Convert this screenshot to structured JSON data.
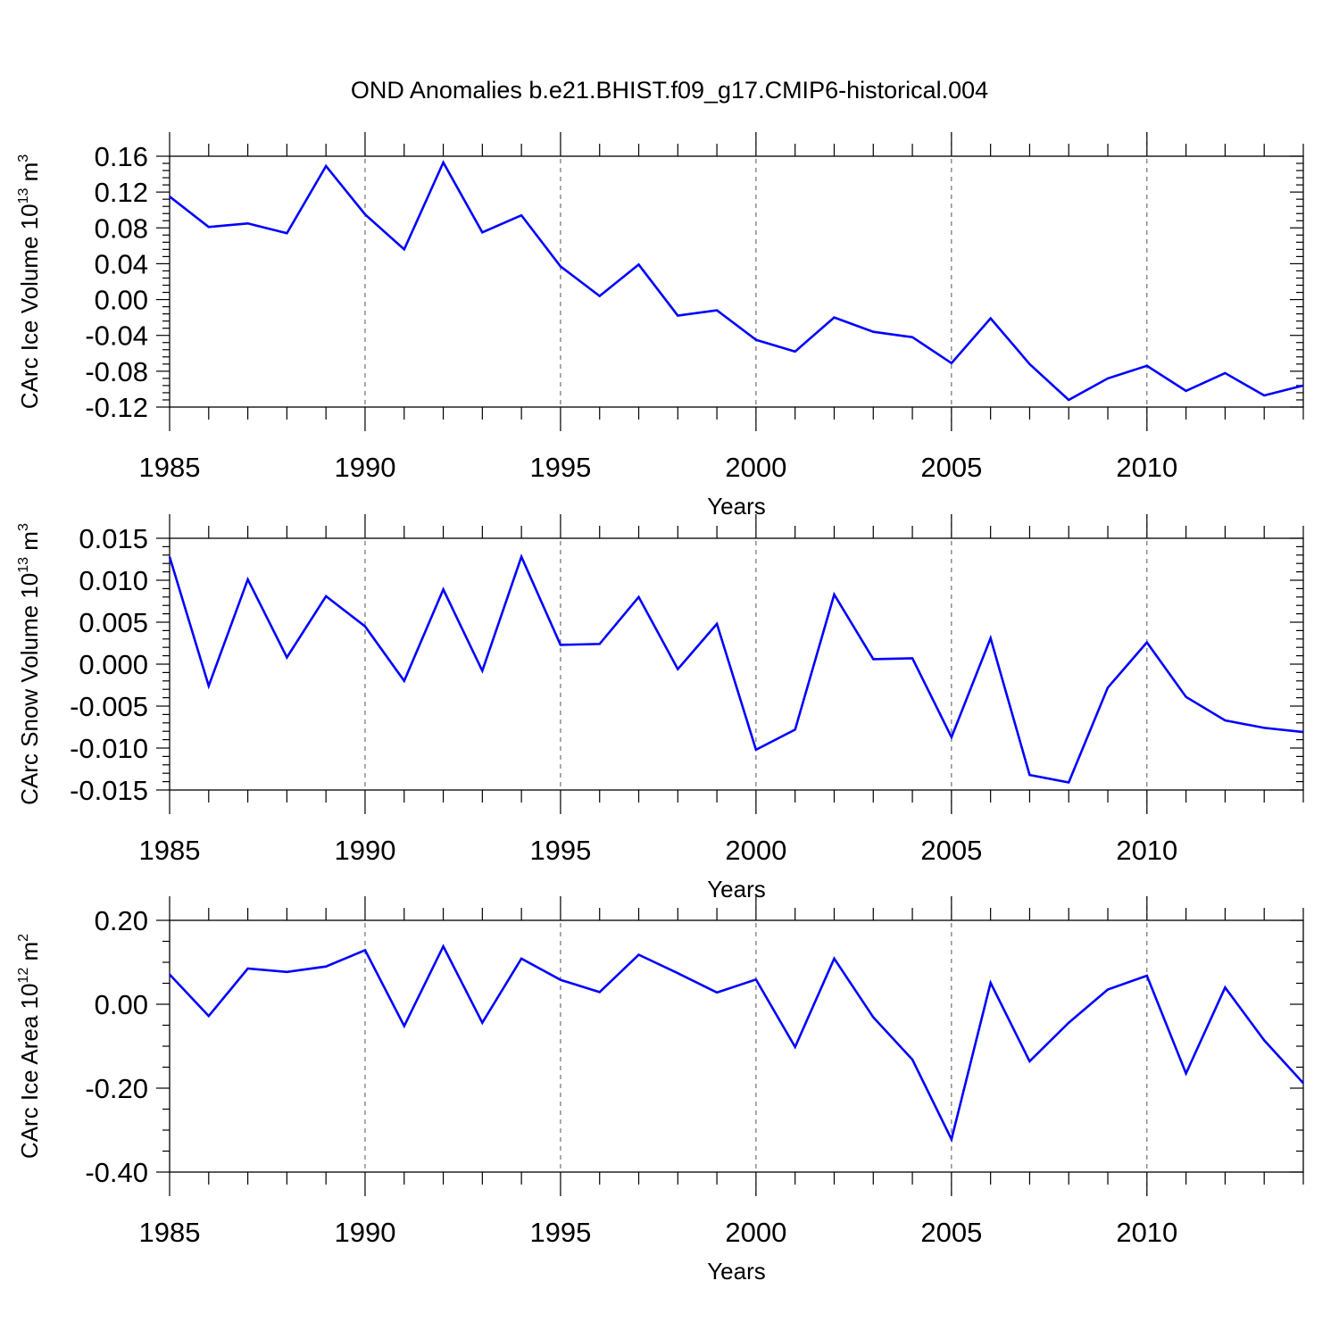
{
  "title": "OND Anomalies b.e21.BHIST.f09_g17.CMIP6-historical.004",
  "colors": {
    "line": "#0000ff",
    "axis": "#000000",
    "grid": "#555555"
  },
  "chart_data": [
    {
      "type": "line",
      "ylabel": {
        "text": "CArc Ice Volume 10",
        "sup": "13",
        "unit": " m",
        "unit_sup": "3"
      },
      "xlabel": "Years",
      "xlim": [
        1985,
        2014
      ],
      "ylim": [
        -0.12,
        0.16
      ],
      "yticks": [
        0.16,
        0.12,
        0.08,
        0.04,
        0.0,
        -0.04,
        -0.08,
        -0.12
      ],
      "ytick_labels": [
        "0.16",
        "0.12",
        "0.08",
        "0.04",
        "0.00",
        "-0.04",
        "-0.08",
        "-0.12"
      ],
      "xticks": [
        1985,
        1990,
        1995,
        2000,
        2005,
        2010
      ],
      "xtick_labels": [
        "1985",
        "1990",
        "1995",
        "2000",
        "2005",
        "2010"
      ],
      "x": [
        1985,
        1986,
        1987,
        1988,
        1989,
        1990,
        1991,
        1992,
        1993,
        1994,
        1995,
        1996,
        1997,
        1998,
        1999,
        2000,
        2001,
        2002,
        2003,
        2004,
        2005,
        2006,
        2007,
        2008,
        2009,
        2010,
        2011,
        2012,
        2013,
        2014
      ],
      "values": [
        0.115,
        0.081,
        0.085,
        0.074,
        0.149,
        0.095,
        0.056,
        0.153,
        0.075,
        0.094,
        0.037,
        0.004,
        0.039,
        -0.018,
        -0.012,
        -0.045,
        -0.058,
        -0.02,
        -0.036,
        -0.042,
        -0.071,
        -0.021,
        -0.072,
        -0.112,
        -0.088,
        -0.074,
        -0.102,
        -0.082,
        -0.107,
        -0.096
      ]
    },
    {
      "type": "line",
      "ylabel": {
        "text": "CArc Snow Volume 10",
        "sup": "13",
        "unit": " m",
        "unit_sup": "3"
      },
      "xlabel": "Years",
      "xlim": [
        1985,
        2014
      ],
      "ylim": [
        -0.015,
        0.015
      ],
      "yticks": [
        0.015,
        0.01,
        0.005,
        0.0,
        -0.005,
        -0.01,
        -0.015
      ],
      "ytick_labels": [
        "0.015",
        "0.010",
        "0.005",
        "0.000",
        "-0.005",
        "-0.010",
        "-0.015"
      ],
      "xticks": [
        1985,
        1990,
        1995,
        2000,
        2005,
        2010
      ],
      "xtick_labels": [
        "1985",
        "1990",
        "1995",
        "2000",
        "2005",
        "2010"
      ],
      "x": [
        1985,
        1986,
        1987,
        1988,
        1989,
        1990,
        1991,
        1992,
        1993,
        1994,
        1995,
        1996,
        1997,
        1998,
        1999,
        2000,
        2001,
        2002,
        2003,
        2004,
        2005,
        2006,
        2007,
        2008,
        2009,
        2010,
        2011,
        2012,
        2013,
        2014
      ],
      "values": [
        0.0128,
        -0.0026,
        0.0101,
        0.0008,
        0.0081,
        0.0045,
        -0.002,
        0.0089,
        -0.0008,
        0.0128,
        0.0023,
        0.0024,
        0.008,
        -0.0006,
        0.0048,
        -0.0102,
        -0.0078,
        0.0083,
        0.0006,
        0.0007,
        -0.0087,
        0.0031,
        -0.0132,
        -0.0141,
        -0.0028,
        0.0026,
        -0.0039,
        -0.0067,
        -0.0076,
        -0.0081
      ]
    },
    {
      "type": "line",
      "ylabel": {
        "text": "CArc Ice Area 10",
        "sup": "12",
        "unit": " m",
        "unit_sup": "2"
      },
      "xlabel": "Years",
      "xlim": [
        1985,
        2014
      ],
      "ylim": [
        -0.4,
        0.2
      ],
      "yticks": [
        0.2,
        0.0,
        -0.2,
        -0.4
      ],
      "ytick_labels": [
        "0.20",
        "0.00",
        "-0.20",
        "-0.40"
      ],
      "xticks": [
        1985,
        1990,
        1995,
        2000,
        2005,
        2010
      ],
      "xtick_labels": [
        "1985",
        "1990",
        "1995",
        "2000",
        "2005",
        "2010"
      ],
      "x": [
        1985,
        1986,
        1987,
        1988,
        1989,
        1990,
        1991,
        1992,
        1993,
        1994,
        1995,
        1996,
        1997,
        1998,
        1999,
        2000,
        2001,
        2002,
        2003,
        2004,
        2005,
        2006,
        2007,
        2008,
        2009,
        2010,
        2011,
        2012,
        2013,
        2014
      ],
      "values": [
        0.071,
        -0.028,
        0.085,
        0.077,
        0.09,
        0.129,
        -0.052,
        0.138,
        -0.044,
        0.109,
        0.058,
        0.029,
        0.118,
        0.074,
        0.028,
        0.059,
        -0.102,
        0.109,
        -0.031,
        -0.132,
        -0.322,
        0.051,
        -0.136,
        -0.044,
        0.035,
        0.068,
        -0.165,
        0.04,
        -0.086,
        -0.188
      ]
    }
  ]
}
